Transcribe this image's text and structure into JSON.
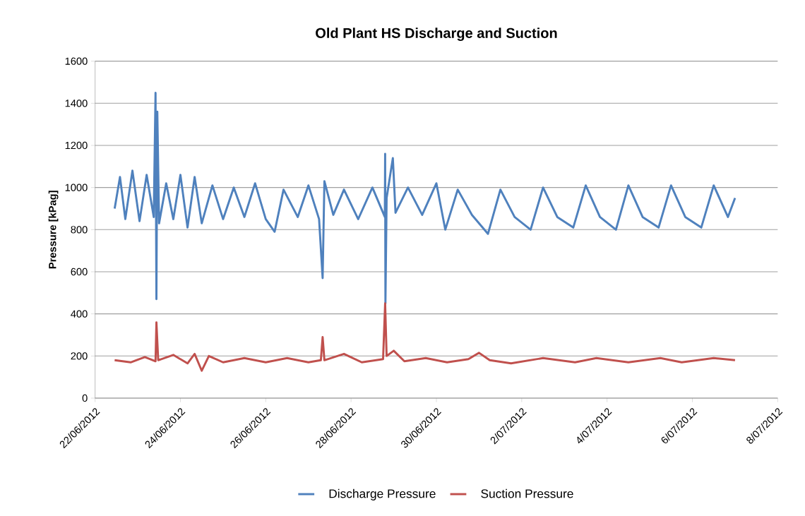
{
  "chart_data": {
    "type": "line",
    "title": "Old Plant HS Discharge and Suction",
    "ylabel": "Pressure [kPag]",
    "xlim": [
      "2012-06-22",
      "2012-07-08"
    ],
    "xticks": [
      {
        "value": "2012-06-22",
        "label": "22/06/2012"
      },
      {
        "value": "2012-06-24",
        "label": "24/06/2012"
      },
      {
        "value": "2012-06-26",
        "label": "26/06/2012"
      },
      {
        "value": "2012-06-28",
        "label": "28/06/2012"
      },
      {
        "value": "2012-06-30",
        "label": "30/06/2012"
      },
      {
        "value": "2012-07-02",
        "label": "2/07/2012"
      },
      {
        "value": "2012-07-04",
        "label": "4/07/2012"
      },
      {
        "value": "2012-07-06",
        "label": "6/07/2012"
      },
      {
        "value": "2012-07-08",
        "label": "8/07/2012"
      }
    ],
    "ylim": [
      0,
      1600
    ],
    "yticks": [
      0,
      200,
      400,
      600,
      800,
      1000,
      1200,
      1400,
      1600
    ],
    "grid": "y",
    "legend": "bottom",
    "marker": "none",
    "line_style": "solid",
    "series": [
      {
        "name": "Discharge Pressure",
        "color": "#4f81bd",
        "x": [
          "2012-06-22T11:00",
          "2012-06-22T14:00",
          "2012-06-22T17:00",
          "2012-06-22T21:00",
          "2012-06-23T01:00",
          "2012-06-23T05:00",
          "2012-06-23T09:00",
          "2012-06-23T10:00",
          "2012-06-23T10:30",
          "2012-06-23T11:00",
          "2012-06-23T12:00",
          "2012-06-23T16:00",
          "2012-06-23T20:00",
          "2012-06-24T00:00",
          "2012-06-24T04:00",
          "2012-06-24T08:00",
          "2012-06-24T12:00",
          "2012-06-24T18:00",
          "2012-06-25T00:00",
          "2012-06-25T06:00",
          "2012-06-25T12:00",
          "2012-06-25T18:00",
          "2012-06-26T00:00",
          "2012-06-26T05:00",
          "2012-06-26T10:00",
          "2012-06-26T18:00",
          "2012-06-27T00:00",
          "2012-06-27T06:00",
          "2012-06-27T08:00",
          "2012-06-27T09:00",
          "2012-06-27T14:00",
          "2012-06-27T20:00",
          "2012-06-28T04:00",
          "2012-06-28T12:00",
          "2012-06-28T19:00",
          "2012-06-28T19:10",
          "2012-06-28T19:20",
          "2012-06-28T20:00",
          "2012-06-28T23:30",
          "2012-06-29T01:00",
          "2012-06-29T08:00",
          "2012-06-29T16:00",
          "2012-06-30T00:00",
          "2012-06-30T05:00",
          "2012-06-30T12:00",
          "2012-06-30T20:00",
          "2012-07-01T05:00",
          "2012-07-01T12:00",
          "2012-07-01T20:00",
          "2012-07-02T05:00",
          "2012-07-02T12:00",
          "2012-07-02T20:00",
          "2012-07-03T05:00",
          "2012-07-03T12:00",
          "2012-07-03T20:00",
          "2012-07-04T05:00",
          "2012-07-04T12:00",
          "2012-07-04T20:00",
          "2012-07-05T05:00",
          "2012-07-05T12:00",
          "2012-07-05T20:00",
          "2012-07-06T05:00",
          "2012-07-06T12:00",
          "2012-07-06T20:00",
          "2012-07-07T00:00"
        ],
        "values": [
          900,
          1050,
          850,
          1080,
          840,
          1060,
          860,
          1450,
          470,
          1360,
          830,
          1020,
          850,
          1060,
          810,
          1050,
          830,
          1010,
          850,
          1000,
          860,
          1020,
          850,
          790,
          990,
          860,
          1010,
          850,
          570,
          1030,
          870,
          990,
          850,
          1000,
          860,
          1160,
          450,
          950,
          1140,
          880,
          1000,
          870,
          1020,
          800,
          990,
          870,
          780,
          990,
          860,
          800,
          1000,
          860,
          810,
          1010,
          860,
          800,
          1010,
          860,
          810,
          1010,
          860,
          810,
          1010,
          860,
          950
        ]
      },
      {
        "name": "Suction Pressure",
        "color": "#c0504d",
        "x": [
          "2012-06-22T11:00",
          "2012-06-22T20:00",
          "2012-06-23T04:00",
          "2012-06-23T10:00",
          "2012-06-23T10:30",
          "2012-06-23T11:30",
          "2012-06-23T20:00",
          "2012-06-24T04:00",
          "2012-06-24T08:00",
          "2012-06-24T12:00",
          "2012-06-24T16:00",
          "2012-06-25T00:00",
          "2012-06-25T12:00",
          "2012-06-26T00:00",
          "2012-06-26T12:00",
          "2012-06-27T00:00",
          "2012-06-27T07:00",
          "2012-06-27T08:00",
          "2012-06-27T09:00",
          "2012-06-27T20:00",
          "2012-06-28T06:00",
          "2012-06-28T18:00",
          "2012-06-28T19:10",
          "2012-06-28T20:00",
          "2012-06-29T00:00",
          "2012-06-29T06:00",
          "2012-06-29T18:00",
          "2012-06-30T06:00",
          "2012-06-30T18:00",
          "2012-07-01T00:00",
          "2012-07-01T06:00",
          "2012-07-01T18:00",
          "2012-07-02T12:00",
          "2012-07-03T06:00",
          "2012-07-03T18:00",
          "2012-07-04T12:00",
          "2012-07-05T06:00",
          "2012-07-05T18:00",
          "2012-07-06T12:00",
          "2012-07-07T00:00"
        ],
        "values": [
          180,
          170,
          195,
          175,
          360,
          180,
          205,
          165,
          210,
          130,
          200,
          170,
          190,
          170,
          190,
          170,
          180,
          290,
          180,
          210,
          170,
          185,
          450,
          200,
          225,
          175,
          190,
          170,
          185,
          215,
          180,
          165,
          190,
          170,
          190,
          170,
          190,
          170,
          190,
          180
        ]
      }
    ]
  }
}
